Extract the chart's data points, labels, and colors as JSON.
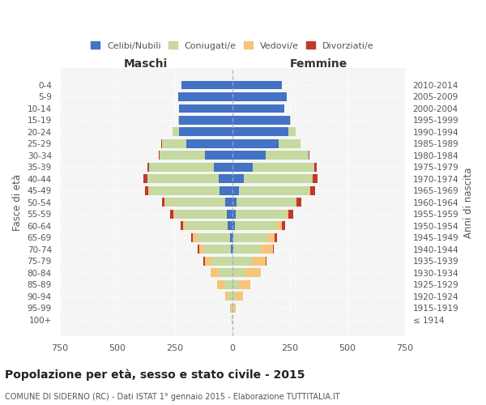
{
  "age_groups": [
    "100+",
    "95-99",
    "90-94",
    "85-89",
    "80-84",
    "75-79",
    "70-74",
    "65-69",
    "60-64",
    "55-59",
    "50-54",
    "45-49",
    "40-44",
    "35-39",
    "30-34",
    "25-29",
    "20-24",
    "15-19",
    "10-14",
    "5-9",
    "0-4"
  ],
  "birth_years": [
    "≤ 1914",
    "1915-1919",
    "1920-1924",
    "1925-1929",
    "1930-1934",
    "1935-1939",
    "1940-1944",
    "1945-1949",
    "1950-1954",
    "1955-1959",
    "1960-1964",
    "1965-1969",
    "1970-1974",
    "1975-1979",
    "1980-1984",
    "1985-1989",
    "1990-1994",
    "1995-1999",
    "2000-2004",
    "2005-2009",
    "2010-2014"
  ],
  "male": {
    "celibi": [
      0,
      0,
      0,
      0,
      0,
      0,
      5,
      10,
      20,
      25,
      30,
      55,
      60,
      80,
      120,
      200,
      230,
      230,
      230,
      235,
      220
    ],
    "coniugati": [
      2,
      5,
      15,
      35,
      60,
      90,
      120,
      145,
      185,
      225,
      260,
      305,
      310,
      280,
      195,
      105,
      30,
      5,
      0,
      0,
      0
    ],
    "vedovi": [
      0,
      5,
      15,
      30,
      35,
      30,
      20,
      15,
      10,
      5,
      5,
      5,
      0,
      0,
      0,
      0,
      0,
      0,
      0,
      0,
      0
    ],
    "divorziati": [
      0,
      0,
      0,
      0,
      0,
      5,
      5,
      10,
      10,
      15,
      10,
      15,
      15,
      10,
      5,
      5,
      0,
      0,
      0,
      0,
      0
    ]
  },
  "female": {
    "nubili": [
      0,
      0,
      0,
      0,
      0,
      0,
      5,
      5,
      10,
      15,
      20,
      30,
      50,
      90,
      145,
      200,
      245,
      250,
      225,
      235,
      215
    ],
    "coniugate": [
      2,
      5,
      15,
      30,
      55,
      85,
      115,
      145,
      185,
      220,
      255,
      305,
      295,
      265,
      185,
      95,
      30,
      5,
      0,
      0,
      0
    ],
    "vedove": [
      0,
      10,
      30,
      50,
      70,
      60,
      55,
      35,
      20,
      10,
      5,
      5,
      5,
      0,
      0,
      0,
      0,
      0,
      0,
      0,
      0
    ],
    "divorziate": [
      0,
      0,
      0,
      0,
      0,
      5,
      5,
      10,
      15,
      20,
      20,
      20,
      20,
      10,
      5,
      0,
      0,
      0,
      0,
      0,
      0
    ]
  },
  "colors": {
    "celibi": "#4472C4",
    "coniugati": "#C5D9A0",
    "vedovi": "#F5C57A",
    "divorziati": "#C0392B"
  },
  "xlim": 750,
  "title": "Popolazione per età, sesso e stato civile - 2015",
  "subtitle": "COMUNE DI SIDERNO (RC) - Dati ISTAT 1° gennaio 2015 - Elaborazione TUTTITALIA.IT",
  "xlabel_left": "Maschi",
  "xlabel_right": "Femmine",
  "ylabel_left": "Fasce di età",
  "ylabel_right": "Anni di nascita",
  "legend_labels": [
    "Celibi/Nubili",
    "Coniugati/e",
    "Vedovi/e",
    "Divorziati/e"
  ],
  "background_color": "#ffffff",
  "plot_bg_color": "#f5f5f5"
}
